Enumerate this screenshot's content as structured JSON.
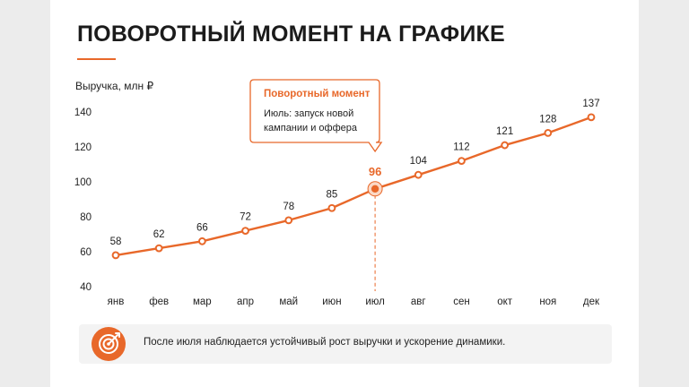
{
  "title": "ПОВОРОТНЫЙ МОМЕНТ НА ГРАФИКЕ",
  "colors": {
    "accent": "#e8682a",
    "text": "#1b1b1b"
  },
  "chart_data": {
    "type": "line",
    "ylabel": "Выручка, млн ₽",
    "categories": [
      "янв",
      "фев",
      "мар",
      "апр",
      "май",
      "июн",
      "июл",
      "авг",
      "сен",
      "окт",
      "ноя",
      "дек"
    ],
    "series": [
      {
        "values": [
          58,
          62,
          66,
          72,
          78,
          85,
          96,
          104,
          112,
          121,
          128,
          137
        ]
      }
    ],
    "ylim": [
      40,
      140
    ],
    "yticks": [
      40,
      60,
      80,
      100,
      120,
      140
    ],
    "data_labels": [
      "58",
      "62",
      "66",
      "72",
      "78",
      "85",
      "96",
      "104",
      "112",
      "121",
      "128",
      "137"
    ],
    "highlight_index": 6,
    "annotation": {
      "title": "Поворотный момент",
      "text_line1": "Июль: запуск новой",
      "text_line2": "кампании и оффера"
    }
  },
  "footer": {
    "icon": "target-icon",
    "text": "После июля наблюдается устойчивый рост выручки и ускорение динамики."
  }
}
